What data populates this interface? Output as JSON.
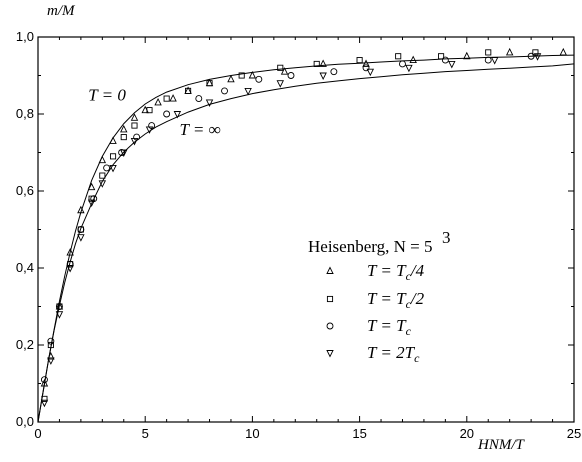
{
  "chart_data": {
    "type": "scatter",
    "xlabel": "HNM/T",
    "ylabel": "m/M",
    "xlim": [
      0,
      25
    ],
    "ylim": [
      0,
      1
    ],
    "x_ticks": [
      "0",
      "5",
      "10",
      "15",
      "20",
      "25"
    ],
    "y_ticks": [
      "0,0",
      "0,2",
      "0,4",
      "0,6",
      "0,8",
      "1,0"
    ],
    "grid": false,
    "legend_title": "Heisenberg,  N = 5",
    "legend_title_sup": "3",
    "legend_position": "right",
    "curves": [
      {
        "label": "T = 0",
        "x": [
          0,
          0.25,
          0.5,
          0.75,
          1,
          1.25,
          1.5,
          1.75,
          2,
          2.5,
          3,
          3.5,
          4,
          4.5,
          5,
          5.5,
          6,
          7,
          8,
          9,
          10,
          11,
          12,
          13,
          14,
          15,
          16,
          17,
          18,
          19,
          20,
          21,
          22,
          23,
          24,
          25
        ],
        "y": [
          0,
          0.083,
          0.164,
          0.24,
          0.313,
          0.38,
          0.441,
          0.496,
          0.545,
          0.627,
          0.69,
          0.738,
          0.775,
          0.803,
          0.826,
          0.843,
          0.857,
          0.876,
          0.89,
          0.9,
          0.908,
          0.915,
          0.92,
          0.925,
          0.929,
          0.932,
          0.935,
          0.938,
          0.94,
          0.943,
          0.945,
          0.947,
          0.948,
          0.95,
          0.952,
          0.953
        ]
      },
      {
        "label": "T = ∞",
        "x": [
          0,
          0.25,
          0.5,
          0.75,
          1,
          1.25,
          1.5,
          1.75,
          2,
          2.5,
          3,
          3.5,
          4,
          4.5,
          5,
          5.5,
          6,
          7,
          8,
          9,
          10,
          11,
          12,
          13,
          14,
          15,
          16,
          17,
          18,
          19,
          20,
          21,
          22,
          23,
          24,
          25
        ],
        "y": [
          0,
          0.083,
          0.164,
          0.238,
          0.302,
          0.363,
          0.416,
          0.463,
          0.503,
          0.567,
          0.625,
          0.668,
          0.701,
          0.727,
          0.748,
          0.766,
          0.78,
          0.805,
          0.825,
          0.84,
          0.853,
          0.863,
          0.872,
          0.88,
          0.886,
          0.892,
          0.897,
          0.902,
          0.906,
          0.91,
          0.913,
          0.916,
          0.919,
          0.922,
          0.925,
          0.93
        ]
      }
    ],
    "series": [
      {
        "name": "T = T_c/4",
        "marker": "triangle-up",
        "x": [
          0.3,
          0.6,
          1.0,
          1.5,
          2.0,
          2.5,
          3.0,
          3.5,
          4.0,
          4.5,
          5.0,
          5.6,
          6.3,
          7.0,
          8.0,
          9.0,
          10.0,
          11.5,
          13.3,
          15.3,
          17.5,
          20.0,
          22.0,
          24.5
        ],
        "y": [
          0.1,
          0.17,
          0.3,
          0.44,
          0.55,
          0.61,
          0.68,
          0.73,
          0.76,
          0.79,
          0.81,
          0.83,
          0.84,
          0.86,
          0.88,
          0.89,
          0.9,
          0.91,
          0.93,
          0.93,
          0.94,
          0.95,
          0.96,
          0.96
        ]
      },
      {
        "name": "T = T_c/2",
        "marker": "square",
        "x": [
          0.3,
          0.6,
          1.0,
          1.5,
          2.0,
          2.5,
          3.0,
          3.5,
          4.0,
          4.5,
          5.2,
          6.0,
          7.0,
          8.0,
          9.5,
          11.3,
          13.0,
          15.0,
          16.8,
          18.8,
          21.0,
          23.2
        ],
        "y": [
          0.06,
          0.2,
          0.3,
          0.41,
          0.5,
          0.58,
          0.64,
          0.69,
          0.74,
          0.77,
          0.81,
          0.84,
          0.86,
          0.88,
          0.9,
          0.92,
          0.93,
          0.94,
          0.95,
          0.95,
          0.96,
          0.96
        ]
      },
      {
        "name": "T = T_c",
        "marker": "circle",
        "x": [
          0.3,
          0.6,
          1.0,
          1.5,
          2.0,
          2.6,
          3.2,
          3.9,
          4.6,
          5.3,
          6.0,
          7.5,
          8.7,
          10.3,
          11.8,
          13.8,
          15.3,
          17.0,
          19.0,
          21.0,
          23.0
        ],
        "y": [
          0.11,
          0.21,
          0.3,
          0.41,
          0.5,
          0.58,
          0.66,
          0.7,
          0.74,
          0.77,
          0.8,
          0.84,
          0.86,
          0.89,
          0.9,
          0.91,
          0.92,
          0.93,
          0.94,
          0.94,
          0.95
        ]
      },
      {
        "name": "T = 2T_c",
        "marker": "triangle-down",
        "x": [
          0.3,
          0.6,
          1.0,
          1.5,
          2.0,
          2.5,
          3.0,
          3.5,
          4.0,
          4.5,
          5.2,
          6.5,
          8.0,
          9.8,
          11.3,
          13.3,
          15.5,
          17.3,
          19.3,
          21.3,
          23.3
        ],
        "y": [
          0.05,
          0.16,
          0.28,
          0.4,
          0.48,
          0.57,
          0.62,
          0.66,
          0.7,
          0.73,
          0.76,
          0.8,
          0.83,
          0.86,
          0.88,
          0.9,
          0.91,
          0.92,
          0.93,
          0.94,
          0.95
        ]
      }
    ],
    "annotations": [
      {
        "text": "T = 0",
        "x": 4.1,
        "y": 0.835
      },
      {
        "text": "T = ∞",
        "x": 6.6,
        "y": 0.745
      }
    ]
  }
}
